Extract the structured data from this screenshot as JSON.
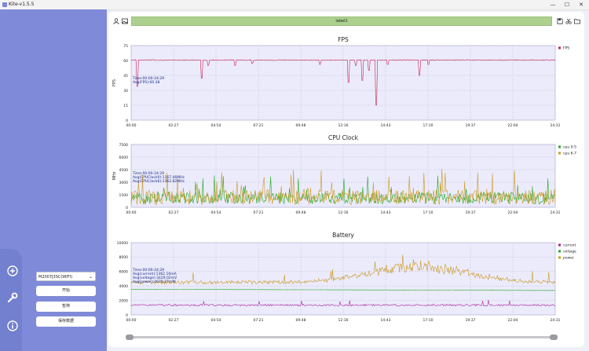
{
  "window": {
    "title": "Kite-v1.5.5",
    "minimize_glyph": "—",
    "maximize_glyph": "☐",
    "close_glyph": "✕"
  },
  "toolbar": {
    "label_text": "label1",
    "icons": [
      "user-icon",
      "image-icon",
      "save-icon",
      "scissors-icon",
      "folder-icon"
    ]
  },
  "sidebar": {
    "device_select_value": "M2007J3SC(WIFI)",
    "buttons": {
      "start": "开始",
      "pause": "暂停",
      "save_data": "保存数据"
    },
    "icons": [
      "add-circle-icon",
      "wrench-icon",
      "info-icon"
    ],
    "accent_color": "#7f8bd8"
  },
  "chart_data": [
    {
      "type": "line",
      "title": "FPS",
      "ylabel": "FPS",
      "xlabel": "",
      "ylim": [
        0,
        75
      ],
      "yticks": [
        0,
        15,
        30,
        45,
        60,
        75
      ],
      "x_tick_labels": [
        "00:00",
        "02:27",
        "04:54",
        "07:21",
        "09:48",
        "12:16",
        "14:43",
        "17:10",
        "19:37",
        "22:04",
        "24:31"
      ],
      "x_range_seconds": [
        0,
        1471
      ],
      "annotation": [
        "Time:00:00-24:29",
        "Avg(FPS):60.38"
      ],
      "series": [
        {
          "name": "FPS",
          "color": "#cc2255",
          "base": 60.4,
          "noise": 0.8,
          "dips": [
            [
              20,
              34
            ],
            [
              245,
              42
            ],
            [
              267,
              55
            ],
            [
              360,
              55
            ],
            [
              420,
              57
            ],
            [
              655,
              56
            ],
            [
              755,
              38
            ],
            [
              779,
              55
            ],
            [
              802,
              40
            ],
            [
              825,
              50
            ],
            [
              849,
              15
            ],
            [
              890,
              56
            ],
            [
              1000,
              45
            ],
            [
              1030,
              56
            ]
          ]
        }
      ]
    },
    {
      "type": "line",
      "title": "CPU Clock",
      "ylabel": "MHz",
      "xlabel": "",
      "ylim": [
        0,
        7500
      ],
      "yticks": [
        0,
        1500,
        3000,
        4500,
        6000,
        7500
      ],
      "x_tick_labels": [
        "00:00",
        "02:27",
        "04:54",
        "07:21",
        "09:48",
        "12:16",
        "14:43",
        "17:10",
        "19:37",
        "22:04",
        "24:31"
      ],
      "x_range_seconds": [
        0,
        1471
      ],
      "annotation": [
        "Time:00:00-24:29",
        "Avg(CPUClock0):1167.46MHz",
        "Avg(CPUClock6):1362.82MHz"
      ],
      "series": [
        {
          "name": "cpu 0-5",
          "color": "#22aa22",
          "base": 1100,
          "noise": 700,
          "spike_max": 3800
        },
        {
          "name": "cpu 6-7",
          "color": "#cc9922",
          "base": 1200,
          "noise": 900,
          "spike_max": 4600
        }
      ]
    },
    {
      "type": "line",
      "title": "Battery",
      "ylabel": "",
      "xlabel": "",
      "ylim": [
        0,
        10000
      ],
      "yticks": [
        0,
        2000,
        4000,
        6000,
        8000,
        10000
      ],
      "x_tick_labels": [
        "00:00",
        "02:27",
        "04:54",
        "07:21",
        "09:48",
        "12:16",
        "14:43",
        "17:10",
        "19:37",
        "22:04",
        "24:31"
      ],
      "x_range_seconds": [
        0,
        1471
      ],
      "annotation": [
        "Time:00:00-24:29",
        "Avg(current):1362.10mA",
        "Avg(voltage):3429.02mV",
        "Avg(power):4670.27mW"
      ],
      "series": [
        {
          "name": "current",
          "color": "#aa2299",
          "base": 1350,
          "noise": 250
        },
        {
          "name": "voltage",
          "color": "#22aa22",
          "start": 3550,
          "end": 3380
        },
        {
          "name": "power",
          "color": "#cc9922",
          "base": 4500,
          "noise": 500,
          "hump_center": 1000,
          "hump_height": 2500
        }
      ]
    }
  ]
}
